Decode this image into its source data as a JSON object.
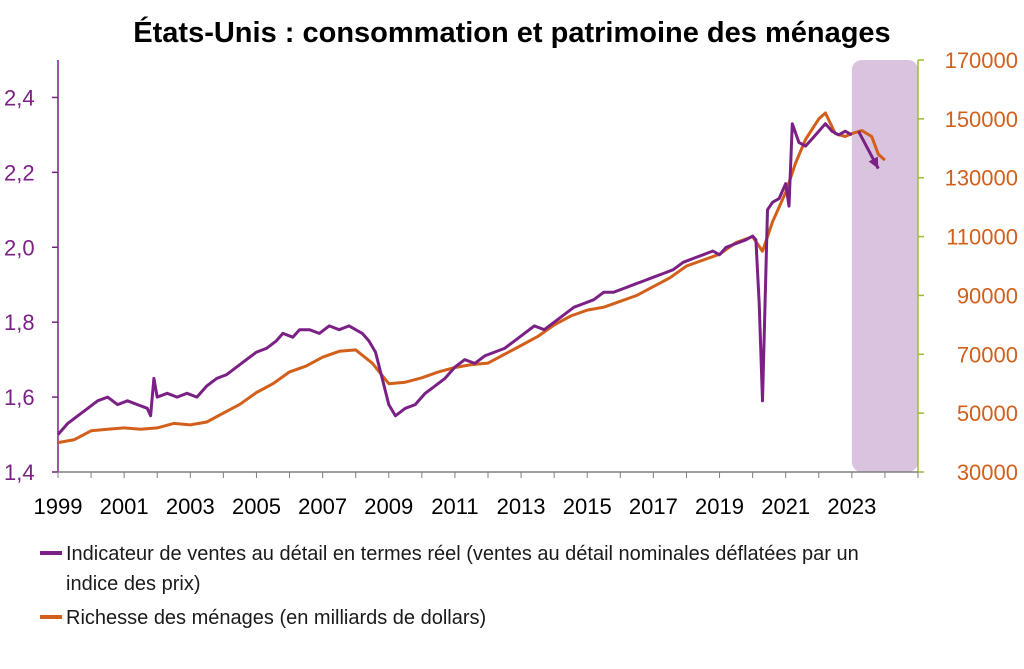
{
  "chart_data": {
    "type": "line",
    "title": "États-Unis : consommation et patrimoine des ménages",
    "x_tick_labels": [
      "1999",
      "2001",
      "2003",
      "2005",
      "2007",
      "2009",
      "2011",
      "2013",
      "2015",
      "2017",
      "2019",
      "2021",
      "2023"
    ],
    "xlim": [
      1999,
      2025
    ],
    "y_left": {
      "ylim": [
        1.4,
        2.5
      ],
      "ticks": [
        "1,4",
        "1,6",
        "1,8",
        "2,0",
        "2,2",
        "2,4"
      ],
      "tick_values": [
        1.4,
        1.6,
        1.8,
        2.0,
        2.2,
        2.4
      ],
      "color": "#7B2185"
    },
    "y_right": {
      "ylim": [
        30000,
        170000
      ],
      "ticks": [
        "30000",
        "50000",
        "70000",
        "90000",
        "110000",
        "130000",
        "150000",
        "170000"
      ],
      "tick_values": [
        30000,
        50000,
        70000,
        90000,
        110000,
        130000,
        150000,
        170000
      ],
      "color": "#D2601A"
    },
    "highlight": {
      "x_start": 2023.0,
      "x_end": 2025.0,
      "color": "#D9C3DE"
    },
    "grid": false,
    "legend_position": "bottom",
    "series": [
      {
        "name": "Indicateur de ventes au détail en termes réel (ventes au détail nominales déflatées par un indice des prix)",
        "axis": "left",
        "color": "#7B2185",
        "points": [
          [
            1999.0,
            1.5
          ],
          [
            1999.3,
            1.53
          ],
          [
            1999.6,
            1.55
          ],
          [
            1999.9,
            1.57
          ],
          [
            2000.2,
            1.59
          ],
          [
            2000.5,
            1.6
          ],
          [
            2000.8,
            1.58
          ],
          [
            2001.1,
            1.59
          ],
          [
            2001.4,
            1.58
          ],
          [
            2001.7,
            1.57
          ],
          [
            2001.8,
            1.55
          ],
          [
            2001.9,
            1.65
          ],
          [
            2002.0,
            1.6
          ],
          [
            2002.3,
            1.61
          ],
          [
            2002.6,
            1.6
          ],
          [
            2002.9,
            1.61
          ],
          [
            2003.2,
            1.6
          ],
          [
            2003.5,
            1.63
          ],
          [
            2003.8,
            1.65
          ],
          [
            2004.1,
            1.66
          ],
          [
            2004.4,
            1.68
          ],
          [
            2004.7,
            1.7
          ],
          [
            2005.0,
            1.72
          ],
          [
            2005.3,
            1.73
          ],
          [
            2005.6,
            1.75
          ],
          [
            2005.8,
            1.77
          ],
          [
            2006.1,
            1.76
          ],
          [
            2006.3,
            1.78
          ],
          [
            2006.6,
            1.78
          ],
          [
            2006.9,
            1.77
          ],
          [
            2007.2,
            1.79
          ],
          [
            2007.5,
            1.78
          ],
          [
            2007.8,
            1.79
          ],
          [
            2008.0,
            1.78
          ],
          [
            2008.2,
            1.77
          ],
          [
            2008.4,
            1.75
          ],
          [
            2008.6,
            1.72
          ],
          [
            2008.8,
            1.65
          ],
          [
            2009.0,
            1.58
          ],
          [
            2009.2,
            1.55
          ],
          [
            2009.5,
            1.57
          ],
          [
            2009.8,
            1.58
          ],
          [
            2010.1,
            1.61
          ],
          [
            2010.4,
            1.63
          ],
          [
            2010.7,
            1.65
          ],
          [
            2011.0,
            1.68
          ],
          [
            2011.3,
            1.7
          ],
          [
            2011.6,
            1.69
          ],
          [
            2011.9,
            1.71
          ],
          [
            2012.2,
            1.72
          ],
          [
            2012.5,
            1.73
          ],
          [
            2012.8,
            1.75
          ],
          [
            2013.1,
            1.77
          ],
          [
            2013.4,
            1.79
          ],
          [
            2013.7,
            1.78
          ],
          [
            2014.0,
            1.8
          ],
          [
            2014.3,
            1.82
          ],
          [
            2014.6,
            1.84
          ],
          [
            2014.9,
            1.85
          ],
          [
            2015.2,
            1.86
          ],
          [
            2015.5,
            1.88
          ],
          [
            2015.8,
            1.88
          ],
          [
            2016.1,
            1.89
          ],
          [
            2016.4,
            1.9
          ],
          [
            2016.7,
            1.91
          ],
          [
            2017.0,
            1.92
          ],
          [
            2017.3,
            1.93
          ],
          [
            2017.6,
            1.94
          ],
          [
            2017.9,
            1.96
          ],
          [
            2018.2,
            1.97
          ],
          [
            2018.5,
            1.98
          ],
          [
            2018.8,
            1.99
          ],
          [
            2019.0,
            1.98
          ],
          [
            2019.2,
            2.0
          ],
          [
            2019.5,
            2.01
          ],
          [
            2019.8,
            2.02
          ],
          [
            2020.0,
            2.03
          ],
          [
            2020.1,
            2.02
          ],
          [
            2020.2,
            1.85
          ],
          [
            2020.3,
            1.59
          ],
          [
            2020.45,
            2.1
          ],
          [
            2020.6,
            2.12
          ],
          [
            2020.8,
            2.13
          ],
          [
            2021.0,
            2.17
          ],
          [
            2021.1,
            2.11
          ],
          [
            2021.2,
            2.33
          ],
          [
            2021.4,
            2.28
          ],
          [
            2021.6,
            2.27
          ],
          [
            2021.8,
            2.29
          ],
          [
            2022.0,
            2.31
          ],
          [
            2022.2,
            2.33
          ],
          [
            2022.4,
            2.31
          ],
          [
            2022.6,
            2.3
          ],
          [
            2022.8,
            2.31
          ],
          [
            2023.0,
            2.3
          ]
        ]
      },
      {
        "name": "Richesse des ménages (en milliards de dollars)",
        "axis": "right",
        "color": "#D2601A",
        "points": [
          [
            1999.0,
            40000
          ],
          [
            1999.5,
            41000
          ],
          [
            2000.0,
            44000
          ],
          [
            2000.5,
            44500
          ],
          [
            2001.0,
            45000
          ],
          [
            2001.5,
            44500
          ],
          [
            2002.0,
            45000
          ],
          [
            2002.5,
            46500
          ],
          [
            2003.0,
            46000
          ],
          [
            2003.5,
            47000
          ],
          [
            2004.0,
            50000
          ],
          [
            2004.5,
            53000
          ],
          [
            2005.0,
            57000
          ],
          [
            2005.5,
            60000
          ],
          [
            2006.0,
            64000
          ],
          [
            2006.5,
            66000
          ],
          [
            2007.0,
            69000
          ],
          [
            2007.5,
            71000
          ],
          [
            2008.0,
            71500
          ],
          [
            2008.5,
            67000
          ],
          [
            2009.0,
            60000
          ],
          [
            2009.5,
            60500
          ],
          [
            2010.0,
            62000
          ],
          [
            2010.5,
            64000
          ],
          [
            2011.0,
            65500
          ],
          [
            2011.5,
            66500
          ],
          [
            2012.0,
            67000
          ],
          [
            2012.5,
            70000
          ],
          [
            2013.0,
            73000
          ],
          [
            2013.5,
            76000
          ],
          [
            2014.0,
            80000
          ],
          [
            2014.5,
            83000
          ],
          [
            2015.0,
            85000
          ],
          [
            2015.5,
            86000
          ],
          [
            2016.0,
            88000
          ],
          [
            2016.5,
            90000
          ],
          [
            2017.0,
            93000
          ],
          [
            2017.5,
            96000
          ],
          [
            2018.0,
            100000
          ],
          [
            2018.5,
            102000
          ],
          [
            2019.0,
            104000
          ],
          [
            2019.5,
            108000
          ],
          [
            2020.0,
            110000
          ],
          [
            2020.3,
            105000
          ],
          [
            2020.6,
            115000
          ],
          [
            2021.0,
            125000
          ],
          [
            2021.3,
            135000
          ],
          [
            2021.6,
            143000
          ],
          [
            2022.0,
            150000
          ],
          [
            2022.2,
            152000
          ],
          [
            2022.5,
            145000
          ],
          [
            2022.8,
            144000
          ],
          [
            2023.0,
            145000
          ],
          [
            2023.3,
            146000
          ],
          [
            2023.6,
            144000
          ],
          [
            2023.8,
            138000
          ],
          [
            2024.0,
            136000
          ]
        ]
      }
    ],
    "annotation": {
      "type": "arrow",
      "color": "#7B2185",
      "from": [
        2023.2,
        2.31
      ],
      "to": [
        2023.8,
        2.21
      ]
    }
  }
}
